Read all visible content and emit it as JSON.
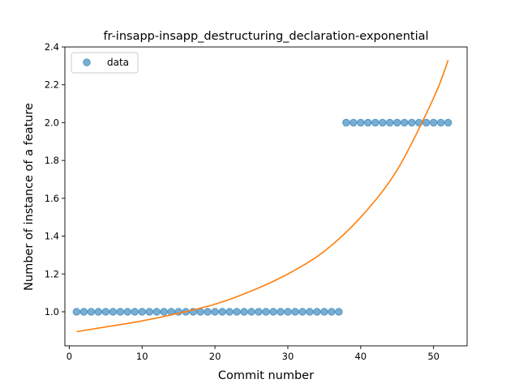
{
  "chart_data": {
    "type": "scatter",
    "title": "fr-insapp-insapp_destructuring_declaration-exponential",
    "xlabel": "Commit number",
    "ylabel": "Number of instance of a feature",
    "xlim": [
      -0.6,
      54.6
    ],
    "ylim": [
      0.82,
      2.4
    ],
    "x_ticks": [
      0,
      10,
      20,
      30,
      40,
      50
    ],
    "y_ticks": [
      1.0,
      1.2,
      1.4,
      1.6,
      1.8,
      2.0,
      2.2,
      2.4
    ],
    "x_tick_labels": [
      "0",
      "10",
      "20",
      "30",
      "40",
      "50"
    ],
    "y_tick_labels": [
      "1.0",
      "1.2",
      "1.4",
      "1.6",
      "1.8",
      "2.0",
      "2.2",
      "2.4"
    ],
    "grid": false,
    "legend": {
      "position": "top-left",
      "entries": [
        "data"
      ]
    },
    "series": [
      {
        "name": "data",
        "kind": "scatter",
        "color": "#1f77b4",
        "x": [
          1,
          2,
          3,
          4,
          5,
          6,
          7,
          8,
          9,
          10,
          11,
          12,
          13,
          14,
          15,
          16,
          17,
          18,
          19,
          20,
          21,
          22,
          23,
          24,
          25,
          26,
          27,
          28,
          29,
          30,
          31,
          32,
          33,
          34,
          35,
          36,
          37,
          38,
          39,
          40,
          41,
          42,
          43,
          44,
          45,
          46,
          47,
          48,
          49,
          50,
          51,
          52
        ],
        "y": [
          1,
          1,
          1,
          1,
          1,
          1,
          1,
          1,
          1,
          1,
          1,
          1,
          1,
          1,
          1,
          1,
          1,
          1,
          1,
          1,
          1,
          1,
          1,
          1,
          1,
          1,
          1,
          1,
          1,
          1,
          1,
          1,
          1,
          1,
          1,
          1,
          1,
          2,
          2,
          2,
          2,
          2,
          2,
          2,
          2,
          2,
          2,
          2,
          2,
          2,
          2,
          2
        ]
      },
      {
        "kind": "line",
        "color": "#ff7f0e",
        "x": [
          1,
          5,
          10,
          15,
          20,
          25,
          30,
          35,
          40,
          45,
          50,
          52
        ],
        "y": [
          0.895,
          0.92,
          0.952,
          0.992,
          1.04,
          1.11,
          1.2,
          1.32,
          1.5,
          1.75,
          2.13,
          2.33
        ]
      }
    ]
  }
}
